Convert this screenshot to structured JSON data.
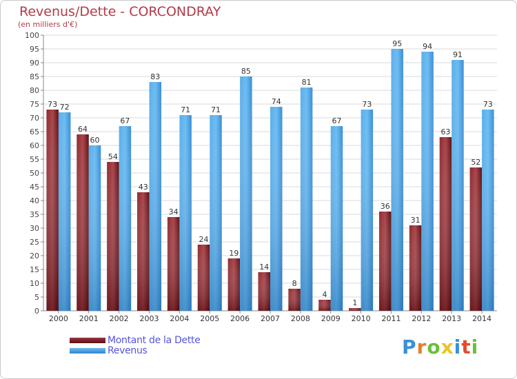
{
  "header": {
    "title": "Revenus/Dette - CORCONDRAY",
    "subtitle": "(en milliers d'€)"
  },
  "legend": {
    "items": [
      {
        "label": "Montant de la Dette",
        "color": "#7a1f24"
      },
      {
        "label": "Revenus",
        "color": "#4aa3e8"
      }
    ]
  },
  "logo": {
    "letters": [
      "P",
      "r",
      "o",
      "x",
      "i",
      "t",
      "i"
    ],
    "colors": [
      "#3a8fd8",
      "#e87d2a",
      "#6bbf3a",
      "#e8c52a",
      "#3a8fd8",
      "#e84a2a",
      "#6bbf3a"
    ]
  },
  "chart_data": {
    "type": "bar",
    "categories": [
      "2000",
      "2001",
      "2002",
      "2003",
      "2004",
      "2005",
      "2006",
      "2007",
      "2008",
      "2009",
      "2010",
      "2011",
      "2012",
      "2013",
      "2014"
    ],
    "series": [
      {
        "name": "Montant de la Dette",
        "color": "#7a1f24",
        "values": [
          73,
          64,
          54,
          43,
          34,
          24,
          19,
          14,
          8,
          4,
          1,
          36,
          31,
          63,
          52
        ]
      },
      {
        "name": "Revenus",
        "color": "#4aa3e8",
        "values": [
          72,
          60,
          67,
          83,
          71,
          71,
          85,
          74,
          81,
          67,
          73,
          95,
          94,
          91,
          73
        ]
      }
    ],
    "yticks": [
      "0",
      "5",
      "10",
      "15",
      "20",
      "25",
      "30",
      "35",
      "40",
      "45",
      "50",
      "55",
      "60",
      "65",
      "70",
      "75",
      "80",
      "85",
      "90",
      "95",
      "100"
    ],
    "ylim": [
      0,
      100
    ],
    "grid": true
  }
}
